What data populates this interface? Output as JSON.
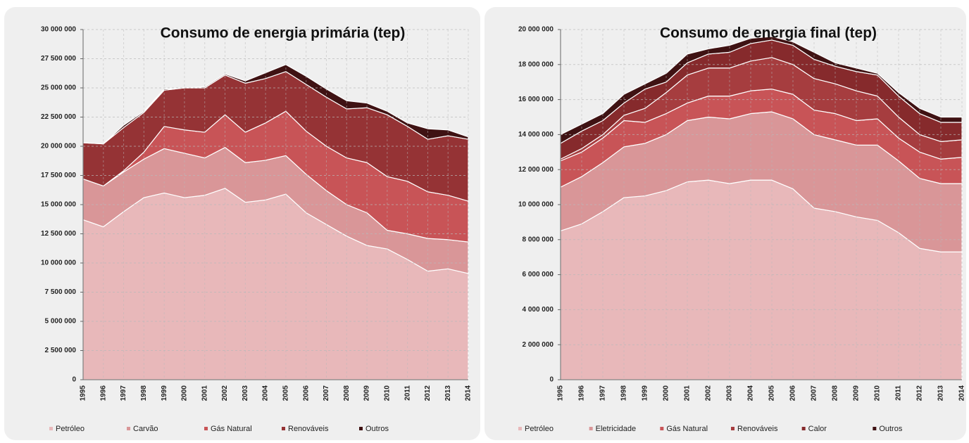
{
  "chart_data": [
    {
      "type": "area",
      "stacked": true,
      "title": "Consumo de energia primária (tep)",
      "categories": [
        "1995",
        "1996",
        "1997",
        "1998",
        "1999",
        "2000",
        "2001",
        "2002",
        "2003",
        "2004",
        "2005",
        "2006",
        "2007",
        "2008",
        "2009",
        "2010",
        "2011",
        "2012",
        "2013",
        "2014"
      ],
      "ylim": [
        0,
        30000000
      ],
      "yticks": [
        0,
        {
          "value": 2500000,
          "label": "2 500 000"
        },
        {
          "value": 5000000,
          "label": "5 000 000"
        },
        {
          "value": 7500000,
          "label": "7 500 000"
        },
        {
          "value": 10000000,
          "label": "10 000 000"
        },
        {
          "value": 12500000,
          "label": "12 500 000"
        },
        {
          "value": 15000000,
          "label": "15 000 000"
        },
        {
          "value": 17500000,
          "label": "17 500 000"
        },
        {
          "value": 20000000,
          "label": "20 000 000"
        },
        {
          "value": 22500000,
          "label": "22 500 000"
        },
        {
          "value": 25000000,
          "label": "25 000 000"
        },
        {
          "value": 27500000,
          "label": "27 500 000"
        },
        {
          "value": 30000000,
          "label": "30 000 000"
        }
      ],
      "grid": true,
      "legend": "bottom",
      "series": [
        {
          "name": "Petróleo",
          "color": "#e8b8ba",
          "values": [
            13700000,
            13100000,
            14400000,
            15600000,
            16000000,
            15600000,
            15800000,
            16400000,
            15200000,
            15400000,
            15900000,
            14300000,
            13300000,
            12300000,
            11500000,
            11200000,
            10300000,
            9300000,
            9500000,
            9100000
          ]
        },
        {
          "name": "Carvão",
          "color": "#d99698",
          "values": [
            3500000,
            3500000,
            3400000,
            3300000,
            3800000,
            3800000,
            3200000,
            3500000,
            3400000,
            3400000,
            3300000,
            3300000,
            2900000,
            2700000,
            2800000,
            1600000,
            2200000,
            2800000,
            2500000,
            2700000
          ]
        },
        {
          "name": "Gás Natural",
          "color": "#c85457",
          "values": [
            0,
            0,
            100000,
            600000,
            1900000,
            2000000,
            2200000,
            2800000,
            2600000,
            3200000,
            3800000,
            3700000,
            3800000,
            4000000,
            4300000,
            4600000,
            4500000,
            4000000,
            3800000,
            3500000
          ]
        },
        {
          "name": "Renováveis",
          "color": "#953335",
          "values": [
            3100000,
            3600000,
            3700000,
            3400000,
            3100000,
            3600000,
            3800000,
            3400000,
            4200000,
            3800000,
            3400000,
            4000000,
            4200000,
            4200000,
            4700000,
            5300000,
            4700000,
            4500000,
            5100000,
            5300000
          ]
        },
        {
          "name": "Outros",
          "color": "#3f1213",
          "values": [
            0,
            0,
            200000,
            100000,
            100000,
            0,
            100000,
            100000,
            200000,
            500000,
            600000,
            700000,
            700000,
            700000,
            400000,
            300000,
            300000,
            900000,
            500000,
            200000
          ]
        }
      ]
    },
    {
      "type": "area",
      "stacked": true,
      "title": "Consumo de energia final (tep)",
      "categories": [
        "1995",
        "1996",
        "1997",
        "1998",
        "1999",
        "2000",
        "2001",
        "2002",
        "2003",
        "2004",
        "2005",
        "2006",
        "2007",
        "2008",
        "2009",
        "2010",
        "2011",
        "2012",
        "2013",
        "2014"
      ],
      "ylim": [
        0,
        20000000
      ],
      "yticks": [
        0,
        {
          "value": 2000000,
          "label": "2 000 000"
        },
        {
          "value": 4000000,
          "label": "4 000 000"
        },
        {
          "value": 6000000,
          "label": "6 000 000"
        },
        {
          "value": 8000000,
          "label": "8 000 000"
        },
        {
          "value": 10000000,
          "label": "10 000 000"
        },
        {
          "value": 12000000,
          "label": "12 000 000"
        },
        {
          "value": 14000000,
          "label": "14 000 000"
        },
        {
          "value": 16000000,
          "label": "16 000 000"
        },
        {
          "value": 18000000,
          "label": "18 000 000"
        },
        {
          "value": 20000000,
          "label": "20 000 000"
        }
      ],
      "grid": true,
      "legend": "bottom",
      "series": [
        {
          "name": "Petróleo",
          "color": "#e8b8ba",
          "values": [
            8500000,
            8900000,
            9600000,
            10400000,
            10500000,
            10800000,
            11300000,
            11400000,
            11200000,
            11400000,
            11400000,
            10900000,
            9800000,
            9600000,
            9300000,
            9100000,
            8400000,
            7500000,
            7300000,
            7300000
          ]
        },
        {
          "name": "Eletricidade",
          "color": "#d99698",
          "values": [
            2500000,
            2700000,
            2800000,
            2900000,
            3000000,
            3200000,
            3500000,
            3600000,
            3700000,
            3800000,
            3900000,
            4000000,
            4200000,
            4100000,
            4100000,
            4300000,
            4100000,
            4000000,
            3900000,
            3900000
          ]
        },
        {
          "name": "Gás Natural",
          "color": "#c85457",
          "values": [
            1500000,
            1400000,
            1400000,
            1500000,
            1200000,
            1200000,
            1000000,
            1200000,
            1300000,
            1300000,
            1300000,
            1400000,
            1400000,
            1500000,
            1400000,
            1500000,
            1300000,
            1500000,
            1400000,
            1500000
          ]
        },
        {
          "name": "Renováveis",
          "color": "#a63d3f",
          "values": [
            100000,
            200000,
            200000,
            300000,
            800000,
            1200000,
            1600000,
            1600000,
            1600000,
            1700000,
            1800000,
            1700000,
            1800000,
            1700000,
            1700000,
            1300000,
            1200000,
            1000000,
            1000000,
            1000000
          ]
        },
        {
          "name": "Calor",
          "color": "#862a2c",
          "values": [
            900000,
            1000000,
            800000,
            700000,
            1100000,
            600000,
            700000,
            800000,
            900000,
            1000000,
            1000000,
            1100000,
            1100000,
            1000000,
            1100000,
            1200000,
            1200000,
            1200000,
            1100000,
            1000000
          ]
        },
        {
          "name": "Outros",
          "color": "#3f1213",
          "values": [
            500000,
            400000,
            400000,
            500000,
            300000,
            500000,
            500000,
            300000,
            400000,
            300000,
            200000,
            200000,
            400000,
            200000,
            200000,
            100000,
            200000,
            300000,
            300000,
            300000
          ]
        }
      ]
    }
  ]
}
